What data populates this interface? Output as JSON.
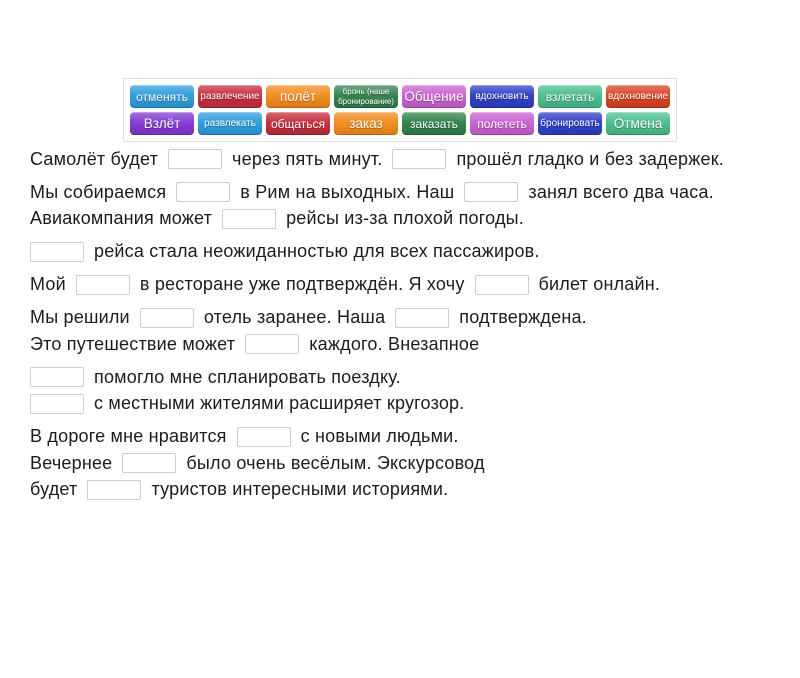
{
  "page": {
    "background": "#ffffff",
    "text_color": "#1c1c1c",
    "blank_border_color": "#c9ced2",
    "word_bank_border_color": "#e0e0e0"
  },
  "word_bank": {
    "rows": [
      [
        {
          "label": "отменять",
          "color": "#2b9bdc"
        },
        {
          "label": "развлечение",
          "color": "#c32b3c"
        },
        {
          "label": "полёт",
          "color": "#f2891b"
        },
        {
          "label": "бронь (наше бронирование)",
          "color": "#2f8049"
        },
        {
          "label": "Общение",
          "color": "#c95ed0"
        },
        {
          "label": "вдохновить",
          "color": "#2c3cc4"
        },
        {
          "label": "взлетать",
          "color": "#47bd8c"
        },
        {
          "label": "вдохновение",
          "color": "#d8401f"
        }
      ],
      [
        {
          "label": "Взлёт",
          "color": "#8136d2"
        },
        {
          "label": "развлекать",
          "color": "#2b9bdc"
        },
        {
          "label": "общаться",
          "color": "#c32b3c"
        },
        {
          "label": "заказ",
          "color": "#f2891b"
        },
        {
          "label": "заказать",
          "color": "#2f8049"
        },
        {
          "label": "полететь",
          "color": "#c95ed0"
        },
        {
          "label": "бронировать",
          "color": "#2c3cc4"
        },
        {
          "label": "Отмена",
          "color": "#47bd8c"
        }
      ]
    ]
  },
  "exercise": {
    "paragraphs": [
      {
        "lines": [
          [
            {
              "t": "Самолёт будет"
            },
            {
              "blank": 1
            },
            {
              "t": "через пять минут."
            },
            {
              "blank": 2
            },
            {
              "t": "прошёл гладко и без задержек."
            }
          ]
        ]
      },
      {
        "lines": [
          [
            {
              "t": "Мы собираемся"
            },
            {
              "blank": 3
            },
            {
              "t": "в Рим на выходных. Наш"
            },
            {
              "blank": 4
            },
            {
              "t": "занял всего два часа."
            }
          ],
          [
            {
              "t": "Авиакомпания может"
            },
            {
              "blank": 5
            },
            {
              "t": "рейсы из-за плохой погоды."
            }
          ]
        ]
      },
      {
        "lines": [
          [
            {
              "blank": 6
            },
            {
              "t": "рейса стала неожиданностью для всех пассажиров."
            }
          ]
        ]
      },
      {
        "lines": [
          [
            {
              "t": "Мой"
            },
            {
              "blank": 7
            },
            {
              "t": "в ресторане уже подтверждён. Я хочу"
            },
            {
              "blank": 8
            },
            {
              "t": "билет онлайн."
            }
          ]
        ]
      },
      {
        "lines": [
          [
            {
              "t": "Мы решили"
            },
            {
              "blank": 9
            },
            {
              "t": "отель заранее. Наша"
            },
            {
              "blank": 10
            },
            {
              "t": "подтверждена."
            }
          ],
          [
            {
              "t": "Это путешествие может"
            },
            {
              "blank": 11
            },
            {
              "t": "каждого. Внезапное"
            }
          ]
        ]
      },
      {
        "lines": [
          [
            {
              "blank": 12
            },
            {
              "t": "помогло мне спланировать поездку."
            }
          ],
          [
            {
              "blank": 13
            },
            {
              "t": "с местными жителями расширяет кругозор."
            }
          ]
        ]
      },
      {
        "lines": [
          [
            {
              "t": "В дороге мне нравится"
            },
            {
              "blank": 14
            },
            {
              "t": "с новыми людьми."
            }
          ],
          [
            {
              "t": "Вечернее"
            },
            {
              "blank": 15
            },
            {
              "t": "было очень весёлым. Экскурсовод"
            }
          ],
          [
            {
              "t": "будет"
            },
            {
              "blank": 16
            },
            {
              "t": "туристов интересными историями."
            }
          ]
        ]
      }
    ]
  }
}
